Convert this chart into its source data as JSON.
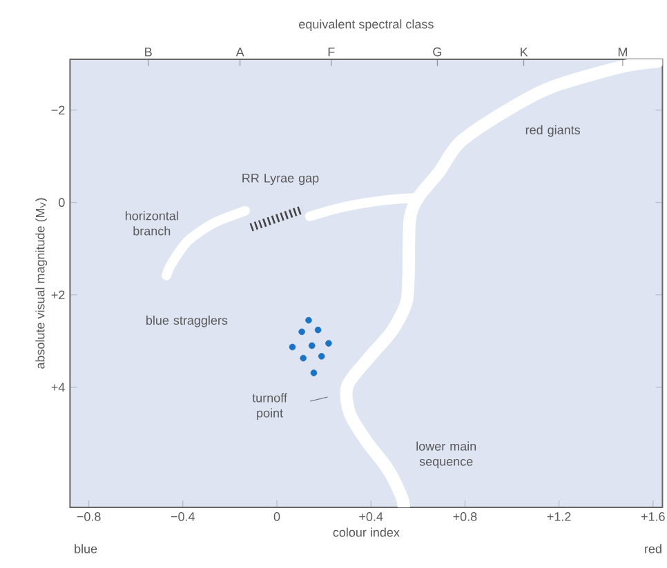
{
  "chart_data": {
    "type": "line",
    "xlabel": "colour index",
    "ylabel": "absolute visual magnitude (M$_{V}$)",
    "x2label": "equivalent spectral class",
    "xlim": [
      -0.88,
      1.64
    ],
    "ylim": [
      6.6,
      -3.1
    ],
    "xticks": [
      {
        "value": -0.8,
        "label": "−0.8"
      },
      {
        "value": -0.4,
        "label": "−0.4"
      },
      0,
      {
        "value": 0.4,
        "label": "+0.4"
      },
      {
        "value": 0.8,
        "label": "+0.8"
      },
      {
        "value": 1.2,
        "label": "+1.2"
      },
      {
        "value": 1.6,
        "label": "+1.6"
      }
    ],
    "yticks": [
      {
        "value": -2,
        "label": "−2"
      },
      0,
      {
        "value": 2,
        "label": "+2"
      },
      {
        "value": 4,
        "label": "+4"
      }
    ],
    "series": [
      {
        "color": "#ffffff",
        "x": [
          0.54,
          0.53,
          0.47,
          0.38,
          0.31,
          0.3,
          0.39,
          0.49,
          0.55,
          0.56,
          0.565,
          0.6,
          0.69,
          0.78,
          0.98,
          1.17,
          1.46,
          1.62
        ],
        "values": [
          6.6,
          6.36,
          5.76,
          5.16,
          4.57,
          3.97,
          3.37,
          2.78,
          2.18,
          1.58,
          0.39,
          -0.1,
          -0.66,
          -1.31,
          -2.0,
          -2.5,
          -2.93,
          -3.05
        ]
      },
      {
        "color": "#ffffff",
        "x": [
          0.14,
          0.29,
          0.46,
          0.6
        ],
        "values": [
          0.3,
          0.09,
          -0.05,
          -0.1
        ]
      },
      {
        "color": "#ffffff",
        "x": [
          -0.135,
          -0.27,
          -0.38,
          -0.45,
          -0.47
        ],
        "values": [
          0.18,
          0.45,
          0.84,
          1.34,
          1.58
        ]
      },
      {
        "color": "#444444",
        "line_style": "dotted",
        "x": [
          -0.11,
          0.11
        ],
        "values": [
          0.54,
          0.15
        ]
      },
      {
        "type": "scatter",
        "color": "#1a73c4",
        "marker": "circle",
        "x": [
          0.135,
          0.106,
          0.175,
          0.066,
          0.149,
          0.22,
          0.112,
          0.19,
          0.157
        ],
        "values": [
          2.55,
          2.8,
          2.76,
          3.13,
          3.1,
          3.05,
          3.37,
          3.33,
          3.69
        ]
      }
    ],
    "annotations": [
      "red giants",
      "RR Lyrae gap",
      "horizontal branch",
      "blue stragglers",
      "turnoff point",
      "lower main sequence",
      "blue",
      "red",
      "B",
      "A",
      "F",
      "G",
      "K",
      "M"
    ]
  }
}
